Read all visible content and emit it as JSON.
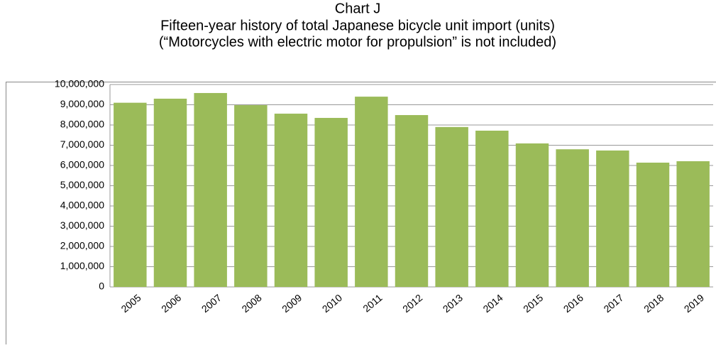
{
  "chart_data": {
    "type": "bar",
    "title": "Chart J",
    "subtitle": "Fifteen-year history of total Japanese bicycle unit import (units)",
    "note": "(“Motorcycles with electric motor for propulsion” is not included)",
    "categories": [
      "2005",
      "2006",
      "2007",
      "2008",
      "2009",
      "2010",
      "2011",
      "2012",
      "2013",
      "2014",
      "2015",
      "2016",
      "2017",
      "2018",
      "2019"
    ],
    "values": [
      9100000,
      9300000,
      9580000,
      8980000,
      8560000,
      8350000,
      9400000,
      8490000,
      7900000,
      7720000,
      7090000,
      6800000,
      6740000,
      6140000,
      6210000
    ],
    "color": "#9bbb59",
    "ylim": [
      0,
      10000000
    ],
    "yticks": [
      0,
      {
        "value": 1000000,
        "label": "1,000,000"
      },
      {
        "value": 2000000,
        "label": "2,000,000"
      },
      {
        "value": 3000000,
        "label": "3,000,000"
      },
      {
        "value": 4000000,
        "label": "4,000,000"
      },
      {
        "value": 5000000,
        "label": "5,000,000"
      },
      {
        "value": 6000000,
        "label": "6,000,000"
      },
      {
        "value": 7000000,
        "label": "7,000,000"
      },
      {
        "value": 8000000,
        "label": "8,000,000"
      },
      {
        "value": 9000000,
        "label": "9,000,000"
      },
      {
        "value": 10000000,
        "label": "10,000,000"
      }
    ],
    "grid": true
  }
}
